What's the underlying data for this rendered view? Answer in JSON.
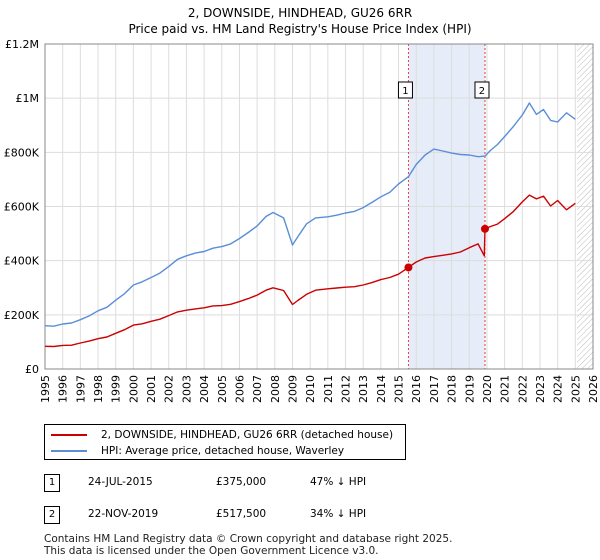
{
  "header": {
    "title": "2, DOWNSIDE, HINDHEAD, GU26 6RR",
    "subtitle": "Price paid vs. HM Land Registry's House Price Index (HPI)"
  },
  "chart_data": {
    "type": "line",
    "xlim": [
      1995,
      2026
    ],
    "ylim": [
      0,
      1200000
    ],
    "y_ticks": [
      0,
      200000,
      400000,
      600000,
      800000,
      1000000,
      1200000
    ],
    "y_tick_labels": [
      "£0",
      "£200K",
      "£400K",
      "£600K",
      "£800K",
      "£1M",
      "£1.2M"
    ],
    "x_ticks": [
      1995,
      1996,
      1997,
      1998,
      1999,
      2000,
      2001,
      2002,
      2003,
      2004,
      2005,
      2006,
      2007,
      2008,
      2009,
      2010,
      2011,
      2012,
      2013,
      2014,
      2015,
      2016,
      2017,
      2018,
      2019,
      2020,
      2021,
      2022,
      2023,
      2024,
      2025,
      2026
    ],
    "x_tick_labels": [
      "1995",
      "1996",
      "1997",
      "1998",
      "1999",
      "2000",
      "2001",
      "2002",
      "2003",
      "2004",
      "2005",
      "2006",
      "2007",
      "2008",
      "2009",
      "2010",
      "2011",
      "2012",
      "2013",
      "2014",
      "2015",
      "2016",
      "2017",
      "2018",
      "2019",
      "2020",
      "2021",
      "2022",
      "2023",
      "2024",
      "2025",
      "2026"
    ],
    "grid": true,
    "shaded_range": [
      2015.56,
      2019.89
    ],
    "future_hatch_from": 2025.1,
    "series": [
      {
        "name": "2, DOWNSIDE, HINDHEAD, GU26 6RR (detached house)",
        "color": "#cc0000",
        "x": [
          1995,
          1995.5,
          1996,
          1996.5,
          1997,
          1997.5,
          1998,
          1998.5,
          1999,
          1999.5,
          2000,
          2000.5,
          2001,
          2001.5,
          2002,
          2002.5,
          2003,
          2003.5,
          2004,
          2004.5,
          2005,
          2005.5,
          2006,
          2006.5,
          2007,
          2007.5,
          2007.9,
          2008.5,
          2009.0,
          2009.3,
          2009.8,
          2010.3,
          2011,
          2011.5,
          2012,
          2012.5,
          2013,
          2013.5,
          2014,
          2014.5,
          2015,
          2015.56,
          2016,
          2016.5,
          2017,
          2017.5,
          2018,
          2018.5,
          2019,
          2019.5,
          2019.85,
          2019.89,
          2020.2,
          2020.6,
          2021,
          2021.5,
          2022,
          2022.4,
          2022.8,
          2023.2,
          2023.6,
          2024,
          2024.5,
          2025
        ],
        "values": [
          84000,
          83000,
          87000,
          88000,
          96000,
          103000,
          112000,
          118000,
          132000,
          145000,
          162000,
          167000,
          176000,
          184000,
          197000,
          211000,
          217000,
          222000,
          226000,
          233000,
          234000,
          239000,
          249000,
          260000,
          273000,
          291000,
          300000,
          290000,
          238000,
          253000,
          276000,
          291000,
          296000,
          299000,
          302000,
          304000,
          310000,
          319000,
          330000,
          338000,
          350000,
          375000,
          395000,
          410000,
          415000,
          420000,
          425000,
          432000,
          448000,
          462000,
          418000,
          517500,
          526000,
          535000,
          555000,
          582000,
          617000,
          642000,
          628000,
          638000,
          602000,
          622000,
          588000,
          612000
        ]
      },
      {
        "name": "HPI: Average price, detached house, Waverley",
        "color": "#5b8ed6",
        "x": [
          1995,
          1995.5,
          1996,
          1996.5,
          1997,
          1997.5,
          1998,
          1998.5,
          1999,
          1999.5,
          2000,
          2000.5,
          2001,
          2001.5,
          2002,
          2002.5,
          2003,
          2003.5,
          2004,
          2004.5,
          2005,
          2005.5,
          2006,
          2006.5,
          2007,
          2007.5,
          2007.9,
          2008.5,
          2009.0,
          2009.3,
          2009.8,
          2010.3,
          2011,
          2011.5,
          2012,
          2012.5,
          2013,
          2013.5,
          2014,
          2014.5,
          2015,
          2015.56,
          2016,
          2016.5,
          2017,
          2017.5,
          2018,
          2018.5,
          2019,
          2019.5,
          2019.89,
          2020.2,
          2020.6,
          2021,
          2021.5,
          2022,
          2022.4,
          2022.8,
          2023.2,
          2023.6,
          2024,
          2024.5,
          2025
        ],
        "values": [
          160000,
          158000,
          166000,
          170000,
          182000,
          196000,
          215000,
          228000,
          254000,
          278000,
          310000,
          322000,
          338000,
          354000,
          378000,
          405000,
          418000,
          428000,
          434000,
          446000,
          452000,
          462000,
          482000,
          504000,
          528000,
          563000,
          578000,
          558000,
          458000,
          488000,
          536000,
          558000,
          562000,
          568000,
          576000,
          582000,
          596000,
          615000,
          636000,
          652000,
          683000,
          710000,
          755000,
          790000,
          812000,
          805000,
          797000,
          792000,
          790000,
          784000,
          786000,
          807000,
          829000,
          858000,
          896000,
          938000,
          982000,
          940000,
          958000,
          918000,
          912000,
          946000,
          922000
        ]
      }
    ],
    "transactions": [
      {
        "id": "1",
        "x": 2015.56,
        "value": 375000,
        "date": "24-JUL-2015",
        "price": "£375,000",
        "hpi": "47% ↓ HPI"
      },
      {
        "id": "2",
        "x": 2019.89,
        "value": 517500,
        "date": "22-NOV-2019",
        "price": "£517,500",
        "hpi": "34% ↓ HPI"
      }
    ]
  },
  "legend": {
    "items": [
      {
        "label": "2, DOWNSIDE, HINDHEAD, GU26 6RR (detached house)",
        "color": "#cc0000"
      },
      {
        "label": "HPI: Average price, detached house, Waverley",
        "color": "#5b8ed6"
      }
    ]
  },
  "footer": {
    "line1": "Contains HM Land Registry data © Crown copyright and database right 2025.",
    "line2": "This data is licensed under the Open Government Licence v3.0."
  }
}
